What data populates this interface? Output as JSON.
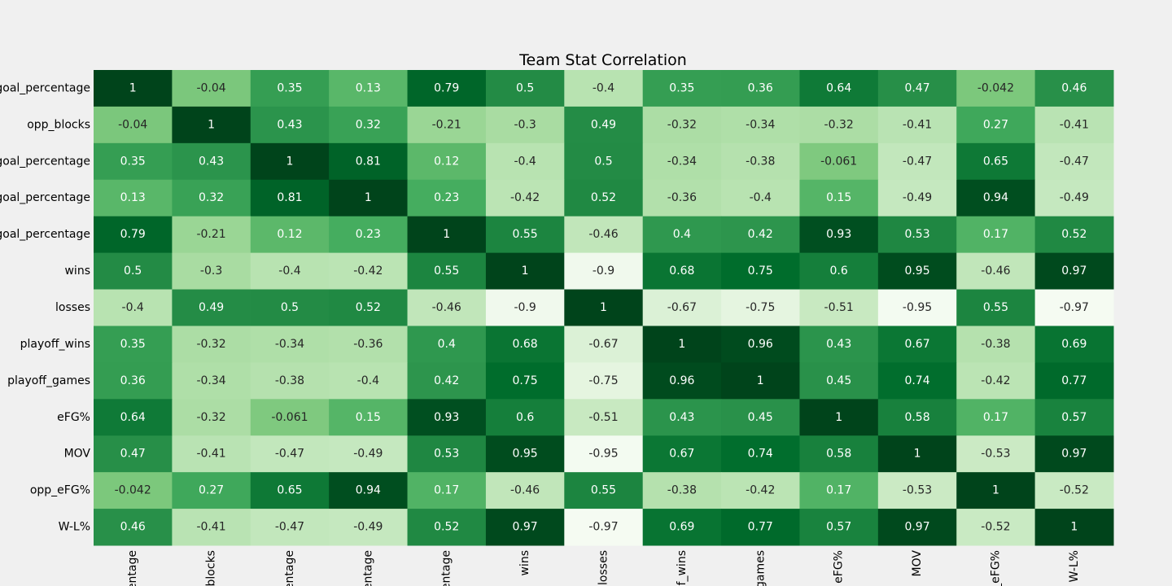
{
  "chart_data": {
    "type": "heatmap",
    "title": "Team Stat Correlation",
    "xlabel": "",
    "ylabel": "",
    "row_labels": [
      "goal_percentage",
      "opp_blocks",
      "goal_percentage",
      "goal_percentage",
      "goal_percentage",
      "wins",
      "losses",
      "playoff_wins",
      "playoff_games",
      "eFG%",
      "MOV",
      "opp_eFG%",
      "W-L%"
    ],
    "col_labels": [
      "entage",
      "_blocks",
      "entage",
      "entage",
      "entage",
      "wins",
      "losses",
      "f_wins",
      "games",
      "eFG%",
      "MOV",
      "_eFG%",
      "W-L%"
    ],
    "values": [
      [
        1,
        -0.04,
        0.35,
        0.13,
        0.79,
        0.5,
        -0.4,
        0.35,
        0.36,
        0.64,
        0.47,
        -0.042,
        0.46
      ],
      [
        -0.04,
        1,
        0.43,
        0.32,
        -0.21,
        -0.3,
        0.49,
        -0.32,
        -0.34,
        -0.32,
        -0.41,
        0.27,
        -0.41
      ],
      [
        0.35,
        0.43,
        1,
        0.81,
        0.12,
        -0.4,
        0.5,
        -0.34,
        -0.38,
        -0.061,
        -0.47,
        0.65,
        -0.47
      ],
      [
        0.13,
        0.32,
        0.81,
        1,
        0.23,
        -0.42,
        0.52,
        -0.36,
        -0.4,
        0.15,
        -0.49,
        0.94,
        -0.49
      ],
      [
        0.79,
        -0.21,
        0.12,
        0.23,
        1,
        0.55,
        -0.46,
        0.4,
        0.42,
        0.93,
        0.53,
        0.17,
        0.52
      ],
      [
        0.5,
        -0.3,
        -0.4,
        -0.42,
        0.55,
        1,
        -0.9,
        0.68,
        0.75,
        0.6,
        0.95,
        -0.46,
        0.97
      ],
      [
        -0.4,
        0.49,
        0.5,
        0.52,
        -0.46,
        -0.9,
        1,
        -0.67,
        -0.75,
        -0.51,
        -0.95,
        0.55,
        -0.97
      ],
      [
        0.35,
        -0.32,
        -0.34,
        -0.36,
        0.4,
        0.68,
        -0.67,
        1,
        0.96,
        0.43,
        0.67,
        -0.38,
        0.69
      ],
      [
        0.36,
        -0.34,
        -0.38,
        -0.4,
        0.42,
        0.75,
        -0.75,
        0.96,
        1,
        0.45,
        0.74,
        -0.42,
        0.77
      ],
      [
        0.64,
        -0.32,
        -0.061,
        0.15,
        0.93,
        0.6,
        -0.51,
        0.43,
        0.45,
        1,
        0.58,
        0.17,
        0.57
      ],
      [
        0.47,
        -0.41,
        -0.47,
        -0.49,
        0.53,
        0.95,
        -0.95,
        0.67,
        0.74,
        0.58,
        1,
        -0.53,
        0.97
      ],
      [
        -0.042,
        0.27,
        0.65,
        0.94,
        0.17,
        -0.46,
        0.55,
        -0.38,
        -0.42,
        0.17,
        -0.53,
        1,
        -0.52
      ],
      [
        0.46,
        -0.41,
        -0.47,
        -0.49,
        0.52,
        0.97,
        -0.97,
        0.69,
        0.77,
        0.57,
        0.97,
        -0.52,
        1
      ]
    ],
    "colormap": "Greens",
    "value_range": [
      -1,
      1
    ],
    "annotations": "cell values",
    "grid": false
  }
}
